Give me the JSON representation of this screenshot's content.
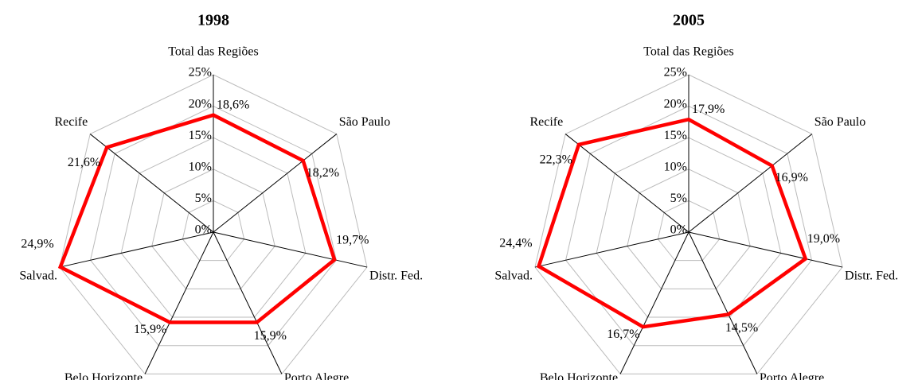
{
  "chart_data": [
    {
      "type": "radar",
      "title": "1998",
      "categories": [
        "Total das Regiões",
        "São Paulo",
        "Distr. Fed.",
        "Porto Alegre",
        "Belo Horizonte",
        "Salvad.",
        "Recife"
      ],
      "values": [
        18.6,
        18.2,
        19.7,
        15.9,
        15.9,
        24.9,
        21.6
      ],
      "value_labels": [
        "18,6%",
        "18,2%",
        "19,7%",
        "15,9%",
        "15,9%",
        "24,9%",
        "21,6%"
      ],
      "color": "#ff0000",
      "rlim": [
        0,
        25
      ],
      "rticks": [
        {
          "value": 0,
          "label": "0%"
        },
        {
          "value": 5,
          "label": "5%"
        },
        {
          "value": 10,
          "label": "10%"
        },
        {
          "value": 15,
          "label": "15%"
        },
        {
          "value": 20,
          "label": "20%"
        },
        {
          "value": 25,
          "label": "25%"
        }
      ],
      "grid": true
    },
    {
      "type": "radar",
      "title": "2005",
      "categories": [
        "Total das Regiões",
        "São Paulo",
        "Distr. Fed.",
        "Porto Alegre",
        "Belo Horizonte",
        "Salvad.",
        "Recife"
      ],
      "values": [
        17.9,
        16.9,
        19.0,
        14.5,
        16.7,
        24.4,
        22.3
      ],
      "value_labels": [
        "17,9%",
        "16,9%",
        "19,0%",
        "14,5%",
        "16,7%",
        "24,4%",
        "22,3%"
      ],
      "color": "#ff0000",
      "rlim": [
        0,
        25
      ],
      "rticks": [
        {
          "value": 0,
          "label": "0%"
        },
        {
          "value": 5,
          "label": "5%"
        },
        {
          "value": 10,
          "label": "10%"
        },
        {
          "value": 15,
          "label": "15%"
        },
        {
          "value": 20,
          "label": "20%"
        },
        {
          "value": 25,
          "label": "25%"
        }
      ],
      "grid": true
    }
  ]
}
